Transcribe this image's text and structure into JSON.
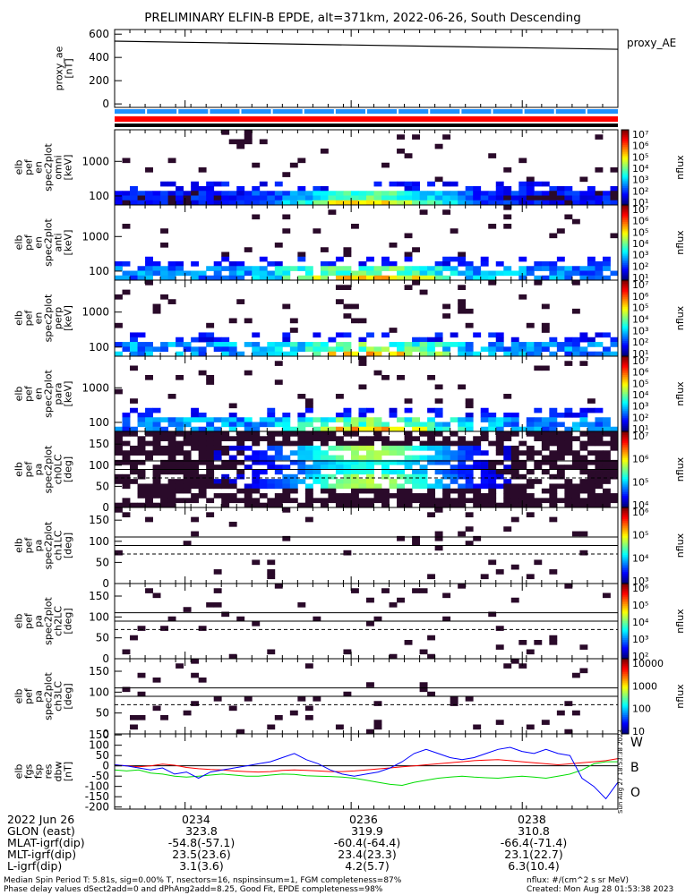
{
  "chart_data": {
    "title": "PRELIMINARY ELFIN-B EPDE, alt=371km, 2022-06-26, South Descending",
    "time_ticks": [
      "0234",
      "0236",
      "0238"
    ],
    "ae_panel": {
      "ylabel": [
        "proxy_ae",
        "[nT]"
      ],
      "yticks": [
        "600",
        "400",
        "200",
        "0"
      ],
      "legend": "proxy_AE",
      "type": "line",
      "x_minutes": [
        0,
        7.3
      ],
      "values": [
        540,
        470
      ],
      "ylim": [
        -30,
        640
      ]
    },
    "spectra": [
      {
        "ylabel": [
          "elb",
          "pef",
          "en",
          "spec2plot",
          "omni",
          "[keV]"
        ],
        "yticks": [
          "1000",
          "100"
        ]
      },
      {
        "ylabel": [
          "elb",
          "pef",
          "en",
          "spec2plot",
          "anti",
          "[keV]"
        ],
        "yticks": [
          "1000",
          "100"
        ]
      },
      {
        "ylabel": [
          "elb",
          "pef",
          "en",
          "spec2plot",
          "perp",
          "[keV]"
        ],
        "yticks": [
          "1000",
          "100"
        ]
      },
      {
        "ylabel": [
          "elb",
          "pef",
          "en",
          "spec2plot",
          "para",
          "[keV]"
        ],
        "yticks": [
          "1000",
          "100"
        ]
      },
      {
        "ylabel": [
          "elb",
          "pef",
          "pa",
          "spec2plot",
          "ch0LC",
          "[deg]"
        ],
        "yticks": [
          "150",
          "100",
          "50",
          "0"
        ]
      },
      {
        "ylabel": [
          "elb",
          "pef",
          "pa",
          "spec2plot",
          "ch1LC",
          "[deg]"
        ],
        "yticks": [
          "150",
          "100",
          "50",
          "0"
        ]
      },
      {
        "ylabel": [
          "elb",
          "pef",
          "pa",
          "spec2plot",
          "ch2LC",
          "[deg]"
        ],
        "yticks": [
          "150",
          "100",
          "50",
          "0"
        ]
      },
      {
        "ylabel": [
          "elb",
          "pef",
          "pa",
          "spec2plot",
          "ch3LC",
          "[deg]"
        ],
        "yticks": [
          "150",
          "100",
          "50",
          "0"
        ]
      }
    ],
    "colorbars": [
      {
        "labels": [
          "10⁷",
          "10⁶",
          "10⁵",
          "10⁴",
          "10³",
          "10²",
          "10¹"
        ],
        "unit": "nflux"
      },
      {
        "labels": [
          "10⁷",
          "10⁶",
          "10⁵",
          "10⁴",
          "10³",
          "10²",
          "10¹"
        ],
        "unit": "nflux"
      },
      {
        "labels": [
          "10⁷",
          "10⁶",
          "10⁵",
          "10⁴",
          "10³",
          "10²",
          "10¹"
        ],
        "unit": "nflux"
      },
      {
        "labels": [
          "10⁷",
          "10⁶",
          "10⁵",
          "10⁴",
          "10³",
          "10²",
          "10¹"
        ],
        "unit": "nflux"
      },
      {
        "labels": [
          "10⁷",
          "10⁶",
          "10⁵",
          "10⁴"
        ],
        "unit": "nflux"
      },
      {
        "labels": [
          "10⁶",
          "10⁵",
          "10⁴",
          "10³"
        ],
        "unit": "nflux"
      },
      {
        "labels": [
          "10⁶",
          "10⁵",
          "10⁴",
          "10³",
          "10²"
        ],
        "unit": "nflux"
      },
      {
        "labels": [
          "10000",
          "1000",
          "100",
          "10"
        ],
        "unit": "nflux"
      }
    ],
    "fgm_panel": {
      "ylabel": [
        "elb",
        "fgs",
        "fsp",
        "res",
        "dbw",
        "[nT]"
      ],
      "yticks": [
        "150",
        "100",
        "50",
        "0",
        "-50",
        "-100",
        "-150",
        "-200"
      ],
      "ylim": [
        -210,
        155
      ],
      "legend": [
        "W",
        "B",
        "O"
      ],
      "series": [
        {
          "color": "#ff0000",
          "values": [
            5,
            0,
            -5,
            0,
            8,
            3,
            -8,
            -14,
            -18,
            -20,
            -25,
            -28,
            -30,
            -28,
            -22,
            -20,
            -22,
            -25,
            -28,
            -28,
            -25,
            -20,
            -15,
            -10,
            -5,
            0,
            5,
            10,
            15,
            20,
            25,
            28,
            30,
            25,
            20,
            15,
            10,
            5,
            10,
            15,
            20,
            25,
            35
          ]
        },
        {
          "color": "#00dd00",
          "values": [
            -20,
            -25,
            -20,
            -35,
            -40,
            -50,
            -55,
            -50,
            -45,
            -40,
            -45,
            -50,
            -50,
            -45,
            -40,
            -42,
            -48,
            -50,
            -52,
            -55,
            -60,
            -70,
            -80,
            -90,
            -95,
            -80,
            -70,
            -60,
            -55,
            -50,
            -55,
            -58,
            -60,
            -55,
            -50,
            -55,
            -60,
            -50,
            -40,
            -20,
            10,
            20,
            20
          ]
        },
        {
          "color": "#0000ff",
          "values": [
            5,
            0,
            -10,
            -20,
            -10,
            -40,
            -30,
            -60,
            -30,
            -20,
            -10,
            0,
            10,
            20,
            40,
            60,
            30,
            10,
            -20,
            -40,
            -50,
            -40,
            -30,
            -10,
            20,
            60,
            80,
            60,
            40,
            30,
            40,
            60,
            80,
            90,
            70,
            60,
            80,
            60,
            50,
            -60,
            -100,
            -160,
            -80
          ]
        }
      ]
    },
    "ephemeris": {
      "header_row": [
        "2022 Jun 26",
        "0234",
        "0236",
        "0238"
      ],
      "rows": [
        {
          "label": "GLON (east)",
          "v1": "323.8",
          "v2": "319.9",
          "v3": "310.8"
        },
        {
          "label": "MLAT-igrf(dip)",
          "v1": "-54.8(-57.1)",
          "v2": "-60.4(-64.4)",
          "v3": "-66.4(-71.4)"
        },
        {
          "label": "MLT-igrf(dip)",
          "v1": "23.5(23.6)",
          "v2": "23.4(23.3)",
          "v3": "23.1(22.7)"
        },
        {
          "label": "L-igrf(dip)",
          "v1": "3.1(3.6)",
          "v2": "4.2(5.7)",
          "v3": "6.3(10.4)"
        }
      ]
    },
    "footer": {
      "line1": "Median Spin Period T: 5.81s, sig=0.00% T, nsectors=16, nspinsinsum=1, FGM completeness=87%",
      "line2": "Phase delay values dSect2add=0 and dPhAng2add=8.25, Good Fit, EPDE completeness=98%",
      "right1": "nflux: #/(cm^2 s sr MeV)",
      "right2": "Created: Mon Aug 28 01:53:38 2023",
      "vertical": "Sun Aug 27 18:53:38 2023"
    },
    "colors": {
      "blue_bar": "#1e90ff",
      "red_bar": "#ff0000"
    }
  }
}
